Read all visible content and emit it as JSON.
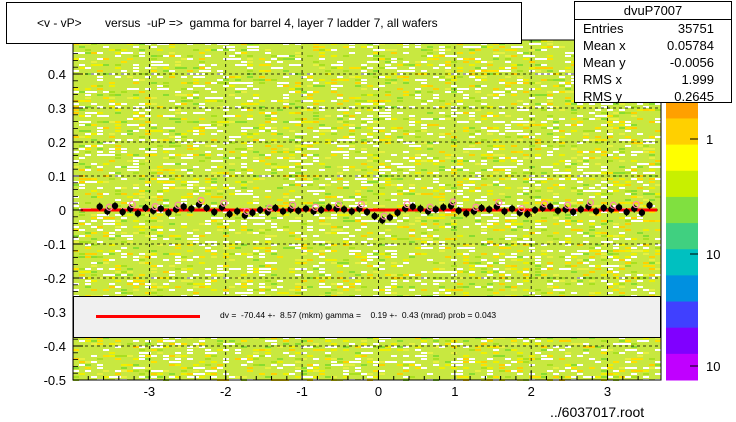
{
  "title": "<v - vP>       versus  -uP =>  gamma for barrel 4, layer 7 ladder 7, all wafers",
  "stats": {
    "name": "dvuP7007",
    "rows": [
      {
        "label": "Entries",
        "value": "35751"
      },
      {
        "label": "Mean x",
        "value": "0.05784"
      },
      {
        "label": "Mean y",
        "value": "-0.0056"
      },
      {
        "label": "RMS x",
        "value": "1.999"
      },
      {
        "label": "RMS y",
        "value": "0.2645"
      }
    ]
  },
  "legend": {
    "text": "dv =  -70.44 +-  8.57 (mkm) gamma =    0.19 +-  0.43 (mrad) prob = 0.043"
  },
  "footer": "../6037017.root",
  "colorbar_labels": [
    "1",
    "10",
    "10"
  ],
  "colors": {
    "fit_line": "#ff0000",
    "profile_points": "#000000",
    "profile_open": "#ff88aa",
    "background_main": "#c8e840"
  },
  "chart_data": {
    "type": "heatmap",
    "xlim": [
      -4,
      3.7
    ],
    "ylim": [
      -0.5,
      0.5
    ],
    "x_ticks": [
      -3,
      -2,
      -1,
      0,
      1,
      2,
      3
    ],
    "y_ticks": [
      0.4,
      0.3,
      0.2,
      0.1,
      0,
      -0.1,
      -0.2,
      -0.3,
      -0.4,
      -0.5
    ],
    "y_tick_labels": [
      "0.4",
      "0.3",
      "0.2",
      "0.1",
      "0",
      "-0.1",
      "-0.2",
      "-0.3",
      "-0.4",
      "-0.5"
    ],
    "grid": true,
    "fit": {
      "intercept": 0.0,
      "slope": 0.0
    },
    "profile": [
      {
        "x": -3.65,
        "y": 0.01
      },
      {
        "x": -3.55,
        "y": -0.004
      },
      {
        "x": -3.45,
        "y": 0.012
      },
      {
        "x": -3.35,
        "y": -0.006
      },
      {
        "x": -3.25,
        "y": 0.004
      },
      {
        "x": -3.15,
        "y": -0.01
      },
      {
        "x": -3.05,
        "y": 0.006
      },
      {
        "x": -2.95,
        "y": -0.002
      },
      {
        "x": -2.85,
        "y": 0.004
      },
      {
        "x": -2.75,
        "y": -0.008
      },
      {
        "x": -2.65,
        "y": 0.002
      },
      {
        "x": -2.55,
        "y": 0.01
      },
      {
        "x": -2.45,
        "y": 0.004
      },
      {
        "x": -2.35,
        "y": 0.016
      },
      {
        "x": -2.25,
        "y": 0.006
      },
      {
        "x": -2.15,
        "y": -0.006
      },
      {
        "x": -2.05,
        "y": 0.008
      },
      {
        "x": -1.95,
        "y": -0.012
      },
      {
        "x": -1.85,
        "y": -0.004
      },
      {
        "x": -1.75,
        "y": -0.016
      },
      {
        "x": -1.65,
        "y": -0.008
      },
      {
        "x": -1.55,
        "y": 0.0
      },
      {
        "x": -1.45,
        "y": -0.006
      },
      {
        "x": -1.35,
        "y": 0.006
      },
      {
        "x": -1.25,
        "y": -0.004
      },
      {
        "x": -1.15,
        "y": 0.002
      },
      {
        "x": -1.05,
        "y": -0.002
      },
      {
        "x": -0.95,
        "y": 0.004
      },
      {
        "x": -0.85,
        "y": -0.004
      },
      {
        "x": -0.75,
        "y": 0.0
      },
      {
        "x": -0.65,
        "y": 0.008
      },
      {
        "x": -0.55,
        "y": 0.004
      },
      {
        "x": -0.45,
        "y": 0.002
      },
      {
        "x": -0.35,
        "y": -0.004
      },
      {
        "x": -0.25,
        "y": 0.004
      },
      {
        "x": -0.15,
        "y": -0.006
      },
      {
        "x": -0.05,
        "y": -0.018
      },
      {
        "x": 0.05,
        "y": -0.03
      },
      {
        "x": 0.15,
        "y": -0.022
      },
      {
        "x": 0.25,
        "y": -0.008
      },
      {
        "x": 0.35,
        "y": 0.004
      },
      {
        "x": 0.45,
        "y": 0.01
      },
      {
        "x": 0.55,
        "y": 0.004
      },
      {
        "x": 0.65,
        "y": -0.004
      },
      {
        "x": 0.75,
        "y": 0.002
      },
      {
        "x": 0.85,
        "y": 0.008
      },
      {
        "x": 0.95,
        "y": 0.012
      },
      {
        "x": 1.05,
        "y": -0.002
      },
      {
        "x": 1.15,
        "y": -0.01
      },
      {
        "x": 1.25,
        "y": -0.004
      },
      {
        "x": 1.35,
        "y": 0.006
      },
      {
        "x": 1.45,
        "y": 0.002
      },
      {
        "x": 1.55,
        "y": 0.01
      },
      {
        "x": 1.65,
        "y": -0.004
      },
      {
        "x": 1.75,
        "y": 0.004
      },
      {
        "x": 1.85,
        "y": -0.008
      },
      {
        "x": 1.95,
        "y": -0.012
      },
      {
        "x": 2.05,
        "y": 0.0
      },
      {
        "x": 2.15,
        "y": 0.006
      },
      {
        "x": 2.25,
        "y": 0.01
      },
      {
        "x": 2.35,
        "y": -0.002
      },
      {
        "x": 2.45,
        "y": 0.002
      },
      {
        "x": 2.55,
        "y": -0.006
      },
      {
        "x": 2.65,
        "y": 0.002
      },
      {
        "x": 2.75,
        "y": 0.01
      },
      {
        "x": 2.85,
        "y": -0.004
      },
      {
        "x": 2.95,
        "y": 0.006
      },
      {
        "x": 3.05,
        "y": 0.002
      },
      {
        "x": 3.15,
        "y": 0.008
      },
      {
        "x": 3.25,
        "y": -0.006
      },
      {
        "x": 3.35,
        "y": 0.004
      },
      {
        "x": 3.45,
        "y": -0.008
      },
      {
        "x": 3.55,
        "y": 0.014
      }
    ]
  }
}
